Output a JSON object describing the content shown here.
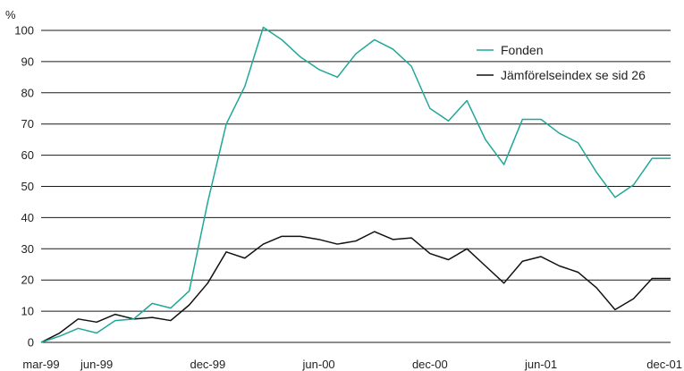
{
  "chart_data": {
    "type": "line",
    "title": "",
    "xlabel": "",
    "ylabel": "%",
    "ylim": [
      0,
      100
    ],
    "yticks": [
      0,
      10,
      20,
      30,
      40,
      50,
      60,
      70,
      80,
      90,
      100
    ],
    "xticks": [
      {
        "label": "mar-99",
        "month": 0
      },
      {
        "label": "jun-99",
        "month": 3
      },
      {
        "label": "dec-99",
        "month": 9
      },
      {
        "label": "jun-00",
        "month": 15
      },
      {
        "label": "dec-00",
        "month": 21
      },
      {
        "label": "jun-01",
        "month": 27
      },
      {
        "label": "dec-01",
        "month": 33
      }
    ],
    "grid": "horizontal",
    "legend_position": "top-right",
    "series": [
      {
        "name": "Fonden",
        "color": "#1fa898",
        "values": [
          0,
          2,
          4.5,
          3,
          7,
          7.5,
          12.5,
          11,
          16.5,
          45,
          70,
          82,
          101,
          97,
          91.5,
          87.5,
          85,
          92.5,
          97,
          94,
          88.5,
          75,
          71,
          77.5,
          65,
          57,
          71.5,
          71.5,
          67,
          64,
          54.5,
          46.5,
          50.5,
          59,
          59
        ]
      },
      {
        "name": "Jämförelseindex se sid 26",
        "color": "#111111",
        "values": [
          0,
          3,
          7.5,
          6.5,
          9,
          7.5,
          8,
          7,
          12,
          19,
          29,
          27,
          31.5,
          34,
          34,
          33,
          31.5,
          32.5,
          35.5,
          33,
          33.5,
          28.5,
          26.5,
          30,
          24.5,
          19,
          26,
          27.5,
          24.5,
          22.5,
          17.5,
          10.5,
          14,
          20.5,
          20.5
        ]
      }
    ]
  }
}
